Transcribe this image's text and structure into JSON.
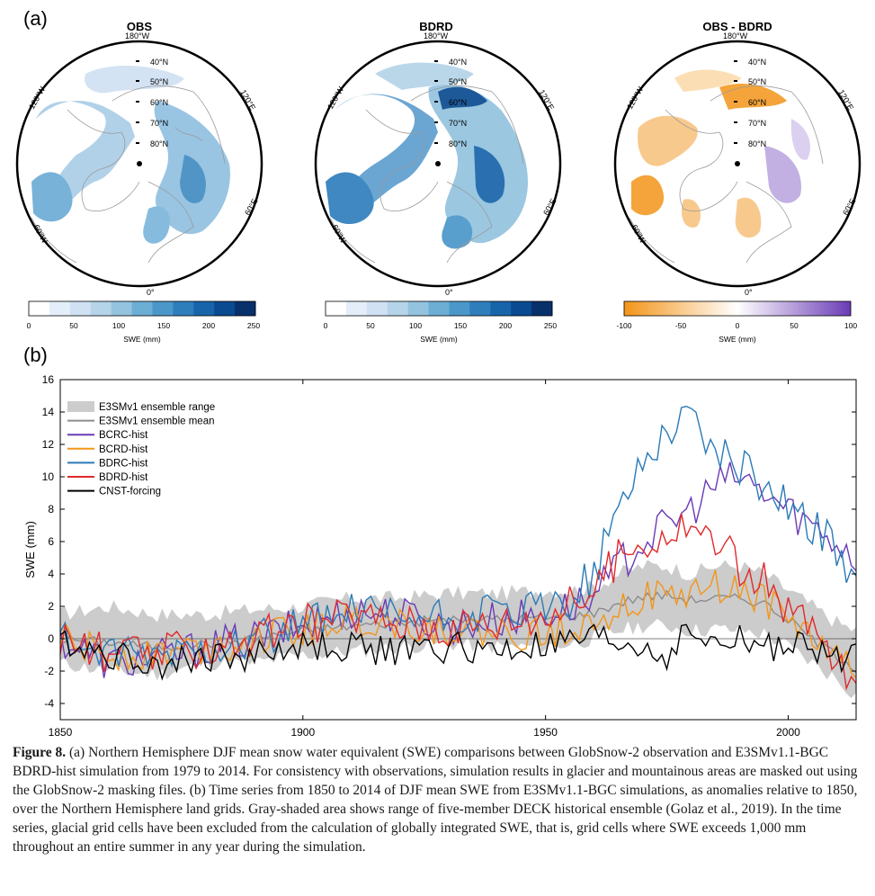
{
  "panel_a_label": "(a)",
  "panel_b_label": "(b)",
  "maps": [
    {
      "title": "OBS",
      "lon_top": "180°W",
      "lon_left": "120°W",
      "lon_right": "120°E",
      "lon_bl": "60°W",
      "lon_br": "60°E",
      "lon_bottom": "0°",
      "lats": [
        "40°N",
        "50°N",
        "60°N",
        "70°N",
        "80°N"
      ]
    },
    {
      "title": "BDRD",
      "lon_top": "180°W",
      "lon_left": "120°W",
      "lon_right": "120°E",
      "lon_bl": "60°W",
      "lon_br": "60°E",
      "lon_bottom": "0°",
      "lats": [
        "40°N",
        "50°N",
        "60°N",
        "70°N",
        "80°N"
      ]
    },
    {
      "title": "OBS - BDRD",
      "lon_top": "180°W",
      "lon_left": "120°W",
      "lon_right": "120°E",
      "lon_bl": "60°W",
      "lon_br": "60°E",
      "lon_bottom": "0°",
      "lats": [
        "40°N",
        "50°N",
        "60°N",
        "70°N",
        "80°N"
      ]
    }
  ],
  "colorbars": [
    {
      "label": "SWE (mm)",
      "ticks": [
        "0",
        "50",
        "100",
        "150",
        "200",
        "250"
      ],
      "colors": [
        "#ffffff",
        "#e3eef9",
        "#cfe1f2",
        "#b5d4e9",
        "#93c3df",
        "#6daed5",
        "#4b97c9",
        "#2f7ebc",
        "#1864aa",
        "#0a4a90",
        "#08306b"
      ]
    },
    {
      "label": "SWE (mm)",
      "ticks": [
        "0",
        "50",
        "100",
        "150",
        "200",
        "250"
      ],
      "colors": [
        "#ffffff",
        "#e3eef9",
        "#cfe1f2",
        "#b5d4e9",
        "#93c3df",
        "#6daed5",
        "#4b97c9",
        "#2f7ebc",
        "#1864aa",
        "#0a4a90",
        "#08306b"
      ]
    },
    {
      "label": "SWE (mm)",
      "ticks": [
        "-100",
        "-50",
        "0",
        "50",
        "100"
      ],
      "colors": [
        "#f39519",
        "#ffffff",
        "#6a3bb5"
      ]
    }
  ],
  "chart_data": {
    "type": "line",
    "ylabel": "SWE (mm)",
    "xlim": [
      1850,
      2014
    ],
    "ylim": [
      -5,
      16
    ],
    "xticks": [
      1850,
      1900,
      1950,
      2000
    ],
    "yticks": [
      -4,
      -2,
      0,
      2,
      4,
      6,
      8,
      10,
      12,
      14,
      16
    ],
    "legend_position": "top-left",
    "ensemble_range": {
      "name": "E3SMv1 ensemble range",
      "color": "#cccccc",
      "x": [
        1850,
        1860,
        1870,
        1880,
        1890,
        1900,
        1910,
        1920,
        1930,
        1940,
        1950,
        1955,
        1960,
        1965,
        1970,
        1975,
        1980,
        1985,
        1990,
        1995,
        2000,
        2005,
        2010,
        2014
      ],
      "lower": [
        -1.5,
        -2.0,
        -2.2,
        -1.5,
        -1.5,
        -1.0,
        -0.8,
        -0.5,
        -0.3,
        -0.5,
        -0.5,
        -0.3,
        0.0,
        0.5,
        0.8,
        0.8,
        0.5,
        0.6,
        0.5,
        0.3,
        -0.5,
        -1.5,
        -2.5,
        -3.5
      ],
      "upper": [
        1.5,
        2.0,
        1.5,
        1.5,
        1.8,
        2.0,
        2.5,
        2.5,
        2.8,
        2.8,
        3.0,
        3.0,
        3.2,
        4.0,
        4.5,
        4.5,
        4.0,
        4.5,
        4.5,
        4.0,
        3.0,
        2.0,
        1.0,
        0.5
      ]
    },
    "series": [
      {
        "name": "E3SMv1 ensemble mean",
        "color": "#8c8c8c",
        "x": [
          1850,
          1860,
          1870,
          1880,
          1890,
          1900,
          1910,
          1920,
          1930,
          1940,
          1950,
          1955,
          1960,
          1965,
          1970,
          1975,
          1980,
          1985,
          1990,
          1995,
          2000,
          2005,
          2010,
          2014
        ],
        "values": [
          0.0,
          -0.2,
          -0.5,
          -0.3,
          0.0,
          0.5,
          0.8,
          1.0,
          1.2,
          1.2,
          1.3,
          1.4,
          1.6,
          2.2,
          2.6,
          2.7,
          2.4,
          2.5,
          2.5,
          2.2,
          1.2,
          0.0,
          -1.0,
          -1.8
        ]
      },
      {
        "name": "BCRC-hist",
        "color": "#6a3bb5",
        "x": [
          1850,
          1860,
          1870,
          1880,
          1890,
          1900,
          1910,
          1920,
          1930,
          1940,
          1950,
          1955,
          1960,
          1965,
          1970,
          1975,
          1980,
          1985,
          1990,
          1995,
          2000,
          2005,
          2010,
          2014
        ],
        "values": [
          0.0,
          -1.5,
          -1.2,
          -0.5,
          0.0,
          0.8,
          1.8,
          1.5,
          0.8,
          1.2,
          1.5,
          2.0,
          2.5,
          4.5,
          6.0,
          7.0,
          8.0,
          9.5,
          10.0,
          9.0,
          8.0,
          7.0,
          6.0,
          5.0
        ]
      },
      {
        "name": "BCRD-hist",
        "color": "#f39519",
        "x": [
          1850,
          1860,
          1870,
          1880,
          1890,
          1900,
          1910,
          1920,
          1930,
          1940,
          1950,
          1955,
          1960,
          1965,
          1970,
          1975,
          1980,
          1985,
          1990,
          1995,
          2000,
          2005,
          2010,
          2014
        ],
        "values": [
          0.0,
          -1.0,
          -0.8,
          -0.5,
          0.0,
          0.5,
          1.2,
          1.0,
          0.5,
          0.3,
          0.2,
          0.8,
          1.2,
          2.0,
          2.5,
          2.5,
          2.8,
          3.2,
          3.0,
          2.5,
          1.2,
          0.0,
          -1.0,
          -2.0
        ]
      },
      {
        "name": "BDRC-hist",
        "color": "#2a7ab8",
        "x": [
          1850,
          1860,
          1870,
          1880,
          1890,
          1900,
          1910,
          1920,
          1930,
          1940,
          1950,
          1955,
          1960,
          1965,
          1970,
          1975,
          1980,
          1985,
          1990,
          1995,
          2000,
          2005,
          2010,
          2014
        ],
        "values": [
          0.0,
          -1.2,
          -1.0,
          -0.5,
          0.0,
          0.8,
          1.5,
          1.2,
          1.2,
          1.5,
          1.8,
          2.5,
          4.0,
          8.0,
          11.0,
          13.0,
          14.0,
          11.5,
          10.5,
          9.5,
          8.5,
          7.0,
          5.5,
          4.0
        ]
      },
      {
        "name": "BDRD-hist",
        "color": "#e0292b",
        "x": [
          1850,
          1860,
          1870,
          1880,
          1890,
          1900,
          1910,
          1920,
          1930,
          1940,
          1950,
          1955,
          1960,
          1965,
          1970,
          1975,
          1980,
          1985,
          1990,
          1995,
          2000,
          2005,
          2010,
          2014
        ],
        "values": [
          0.0,
          -1.0,
          -1.0,
          -0.5,
          0.0,
          0.8,
          1.5,
          1.0,
          0.8,
          1.0,
          1.5,
          2.0,
          3.0,
          5.0,
          6.0,
          6.5,
          7.0,
          6.0,
          4.5,
          3.5,
          2.0,
          0.5,
          -1.5,
          -3.0
        ]
      },
      {
        "name": "CNST-forcing",
        "color": "#000000",
        "x": [
          1850,
          1860,
          1870,
          1880,
          1890,
          1900,
          1910,
          1920,
          1930,
          1940,
          1950,
          1955,
          1960,
          1965,
          1970,
          1975,
          1980,
          1985,
          1990,
          1995,
          2000,
          2005,
          2010,
          2014
        ],
        "values": [
          0.0,
          -1.0,
          -1.5,
          -1.2,
          -1.0,
          -0.5,
          -0.5,
          -0.8,
          -0.5,
          -0.8,
          -0.5,
          -0.3,
          0.0,
          -0.3,
          -0.5,
          -1.0,
          0.5,
          -0.5,
          0.0,
          -0.5,
          -0.3,
          -0.8,
          -1.2,
          -0.8
        ]
      }
    ]
  },
  "caption": {
    "bold": "Figure 8.",
    "text": " (a) Northern Hemisphere DJF mean snow water equivalent (SWE) comparisons between GlobSnow-2 observation and E3SMv1.1-BGC BDRD-hist simulation from 1979 to 2014. For consistency with observations, simulation results in glacier and mountainous areas are masked out using the GlobSnow-2 masking files. (b) Time series from 1850 to 2014 of DJF mean SWE from E3SMv1.1-BGC simulations, as anomalies relative to 1850, over the Northern Hemisphere land grids. Gray-shaded area shows range of five-member DECK historical ensemble (Golaz et al., 2019). In the time series, glacial grid cells have been excluded from the calculation of globally integrated SWE, that is, grid cells where SWE exceeds 1,000 mm throughout an entire summer in any year during the simulation."
  }
}
